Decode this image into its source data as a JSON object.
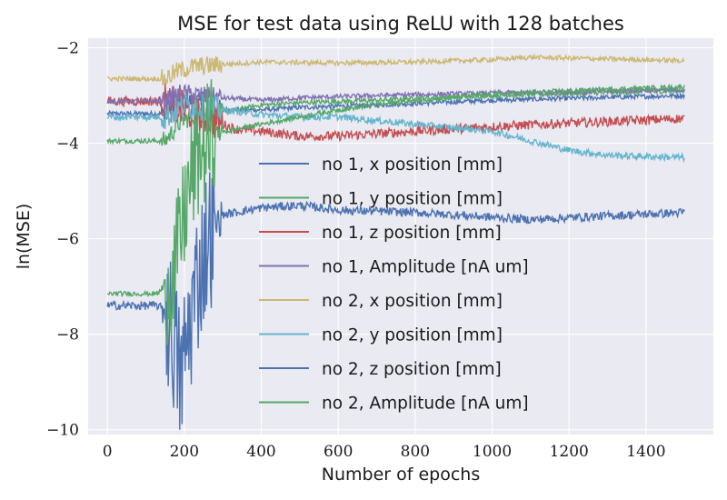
{
  "chart_data": {
    "type": "line",
    "title": "MSE for test data using ReLU with 128 batches",
    "xlabel": "Number of epochs",
    "ylabel": "ln(MSE)",
    "xlim": [
      -50,
      1575
    ],
    "ylim": [
      -10.1,
      -1.8
    ],
    "xticks": [
      0,
      200,
      400,
      600,
      800,
      1000,
      1200,
      1400
    ],
    "yticks": [
      -10,
      -8,
      -6,
      -4,
      -2
    ],
    "xtick_labels": [
      "0",
      "200",
      "400",
      "600",
      "800",
      "1000",
      "1200",
      "1400"
    ],
    "ytick_labels": [
      "−10",
      "−8",
      "−6",
      "−4",
      "−2"
    ],
    "grid": true,
    "legend_position": "center",
    "background": "#eaeaf2",
    "series": [
      {
        "name": "no 1, x position [mm]",
        "color": "#4c72b0",
        "points": [
          [
            0,
            -3.38
          ],
          [
            150,
            -3.38
          ],
          [
            175,
            -3.2
          ],
          [
            200,
            -3.1
          ],
          [
            250,
            -3.15
          ],
          [
            300,
            -3.3
          ],
          [
            400,
            -3.3
          ],
          [
            500,
            -3.25
          ],
          [
            700,
            -3.2
          ],
          [
            1000,
            -3.1
          ],
          [
            1500,
            -3.0
          ]
        ],
        "noise": 0.05
      },
      {
        "name": "no 1, y position [mm]",
        "color": "#55a868",
        "points": [
          [
            0,
            -3.95
          ],
          [
            150,
            -3.95
          ],
          [
            190,
            -3.55
          ],
          [
            220,
            -3.45
          ],
          [
            300,
            -3.35
          ],
          [
            400,
            -3.2
          ],
          [
            500,
            -3.15
          ],
          [
            700,
            -3.1
          ],
          [
            1000,
            -3.0
          ],
          [
            1500,
            -2.9
          ]
        ],
        "noise": 0.05
      },
      {
        "name": "no 1, z position [mm]",
        "color": "#c44e52",
        "points": [
          [
            0,
            -3.12
          ],
          [
            150,
            -3.12
          ],
          [
            200,
            -3.3
          ],
          [
            270,
            -3.5
          ],
          [
            330,
            -3.7
          ],
          [
            400,
            -3.75
          ],
          [
            500,
            -3.85
          ],
          [
            600,
            -3.85
          ],
          [
            800,
            -3.75
          ],
          [
            1000,
            -3.65
          ],
          [
            1200,
            -3.58
          ],
          [
            1500,
            -3.48
          ]
        ],
        "noise": 0.1
      },
      {
        "name": "no 1, Amplitude [nA um]",
        "color": "#8172b2",
        "points": [
          [
            0,
            -3.12
          ],
          [
            150,
            -3.12
          ],
          [
            190,
            -2.95
          ],
          [
            250,
            -3.0
          ],
          [
            300,
            -3.05
          ],
          [
            400,
            -3.1
          ],
          [
            500,
            -3.05
          ],
          [
            700,
            -3.0
          ],
          [
            1000,
            -2.95
          ],
          [
            1500,
            -2.88
          ]
        ],
        "noise": 0.05
      },
      {
        "name": "no 2, x position [mm]",
        "color": "#ccb974",
        "points": [
          [
            0,
            -2.65
          ],
          [
            150,
            -2.65
          ],
          [
            180,
            -2.5
          ],
          [
            220,
            -2.4
          ],
          [
            300,
            -2.35
          ],
          [
            400,
            -2.3
          ],
          [
            600,
            -2.32
          ],
          [
            800,
            -2.3
          ],
          [
            1000,
            -2.25
          ],
          [
            1100,
            -2.2
          ],
          [
            1500,
            -2.27
          ]
        ],
        "noise": 0.05
      },
      {
        "name": "no 2, y position [mm]",
        "color": "#64b5cd",
        "points": [
          [
            0,
            -3.45
          ],
          [
            150,
            -3.45
          ],
          [
            200,
            -3.2
          ],
          [
            300,
            -3.3
          ],
          [
            400,
            -3.4
          ],
          [
            500,
            -3.45
          ],
          [
            600,
            -3.45
          ],
          [
            800,
            -3.6
          ],
          [
            1000,
            -3.75
          ],
          [
            1100,
            -3.95
          ],
          [
            1200,
            -4.15
          ],
          [
            1300,
            -4.25
          ],
          [
            1500,
            -4.3
          ]
        ],
        "noise": 0.07
      },
      {
        "name": "no 2, z position [mm]",
        "color": "#4c72b0",
        "points": [
          [
            0,
            -7.4
          ],
          [
            130,
            -7.4
          ],
          [
            150,
            -7.5
          ],
          [
            170,
            -8.0
          ],
          [
            190,
            -9.0
          ],
          [
            210,
            -8.0
          ],
          [
            230,
            -7.0
          ],
          [
            260,
            -6.0
          ],
          [
            300,
            -5.5
          ],
          [
            400,
            -5.35
          ],
          [
            500,
            -5.3
          ],
          [
            600,
            -5.4
          ],
          [
            800,
            -5.45
          ],
          [
            1000,
            -5.55
          ],
          [
            1100,
            -5.6
          ],
          [
            1300,
            -5.52
          ],
          [
            1500,
            -5.45
          ]
        ],
        "noise": 0.09
      },
      {
        "name": "no 2, Amplitude [nA um]",
        "color": "#55a868",
        "points": [
          [
            0,
            -7.15
          ],
          [
            130,
            -7.15
          ],
          [
            150,
            -7.0
          ],
          [
            170,
            -6.8
          ],
          [
            190,
            -6.0
          ],
          [
            210,
            -5.0
          ],
          [
            240,
            -4.2
          ],
          [
            280,
            -3.8
          ],
          [
            400,
            -3.6
          ],
          [
            500,
            -3.45
          ],
          [
            600,
            -3.3
          ],
          [
            800,
            -3.1
          ],
          [
            1000,
            -2.98
          ],
          [
            1200,
            -2.9
          ],
          [
            1500,
            -2.82
          ]
        ],
        "noise": 0.05
      }
    ]
  }
}
